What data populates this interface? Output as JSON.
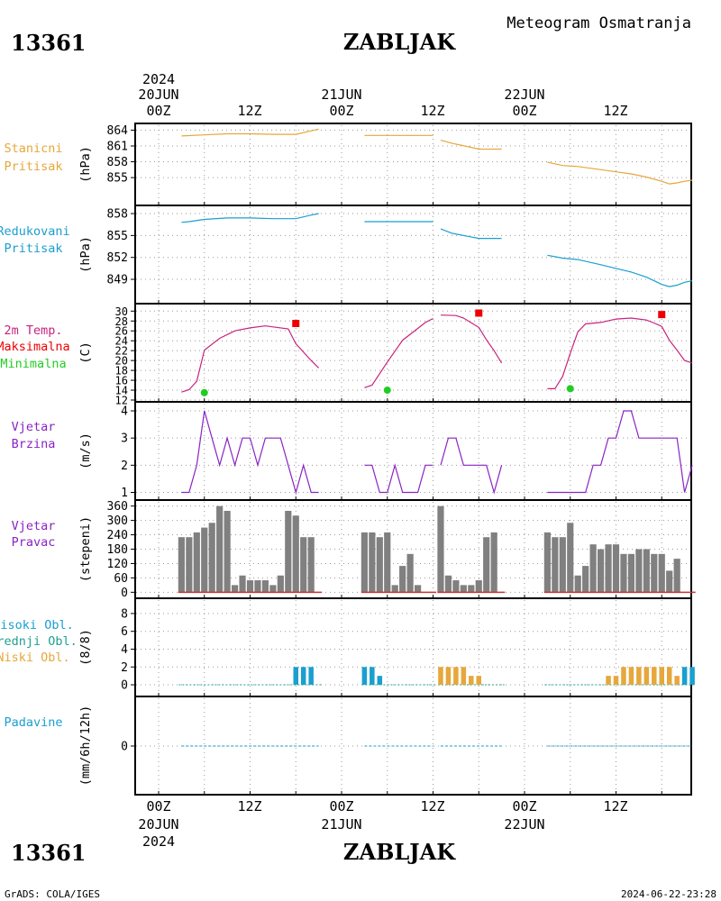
{
  "header": {
    "station_id": "13361",
    "station_name": "ZABLJAK",
    "subtitle": "Meteogram Osmatranja"
  },
  "footer": {
    "station_id": "13361",
    "station_name": "ZABLJAK",
    "left": "GrADS: COLA/IGES",
    "right": "2024-06-22-23:28"
  },
  "time_axis": {
    "top_year": "2024",
    "date_labels": [
      "20JUN",
      "21JUN",
      "22JUN"
    ],
    "hour_labels": [
      "00Z",
      "12Z",
      "00Z",
      "12Z",
      "00Z",
      "12Z"
    ],
    "bottom_year": "2024"
  },
  "colors": {
    "station_pressure": "#e6a73c",
    "reduced_pressure": "#1a9fcf",
    "temperature": "#c8237f",
    "tmax": "#ee0000",
    "tmin": "#22cc22",
    "wind": "#8a24c4",
    "wind_dir_bar": "#808080",
    "wind_dir_base": "#cc3333",
    "cloud_high": "#1a9fcf",
    "cloud_mid": "#20a090",
    "cloud_low": "#e6a73c",
    "precip": "#1a9fcf",
    "grid": "#9a9a9a"
  },
  "chart_data": [
    {
      "type": "line",
      "panel": "station_pressure",
      "label_lines": [
        "Stanicni",
        "Pritisak"
      ],
      "ylabel": "(hPa)",
      "yticks": [
        "864",
        "861",
        "858",
        "855"
      ],
      "ylim": [
        852.8,
        864.5
      ],
      "x_unit": "hours since 2024-06-20 00Z",
      "series": [
        {
          "x": [
            3,
            6,
            9,
            12,
            15,
            18,
            21
          ],
          "y": [
            862.9,
            863.1,
            863.3,
            863.3,
            863.2,
            863.2,
            864.2
          ]
        },
        {
          "x": [
            27,
            30,
            33,
            36
          ],
          "y": [
            863.0,
            863.0,
            863.0,
            863.0
          ]
        },
        {
          "x": [
            37,
            38.5,
            40.5,
            42,
            45
          ],
          "y": [
            862.1,
            861.5,
            860.9,
            860.4,
            860.4
          ]
        },
        {
          "x": [
            51,
            53,
            55,
            58,
            60,
            62,
            64,
            66,
            67,
            68,
            69,
            70
          ],
          "y": [
            857.9,
            857.3,
            857.1,
            856.5,
            856.1,
            855.7,
            855.1,
            854.3,
            853.8,
            854.0,
            854.3,
            854.5
          ]
        }
      ]
    },
    {
      "type": "line",
      "panel": "reduced_pressure",
      "label_lines": [
        "Redukovani",
        "Pritisak"
      ],
      "ylabel": "(hPa)",
      "yticks": [
        "858",
        "855",
        "852",
        "849"
      ],
      "ylim": [
        847.4,
        858.5
      ],
      "x_unit": "hours since 2024-06-20 00Z",
      "series": [
        {
          "x": [
            3,
            4,
            6,
            9,
            12,
            15,
            18,
            20,
            21
          ],
          "y": [
            856.8,
            856.9,
            857.2,
            857.4,
            857.4,
            857.3,
            857.3,
            857.8,
            858.0
          ]
        },
        {
          "x": [
            27,
            30,
            33,
            36
          ],
          "y": [
            856.9,
            856.9,
            856.9,
            856.9
          ]
        },
        {
          "x": [
            37,
            38.5,
            40.5,
            42,
            45
          ],
          "y": [
            855.9,
            855.3,
            854.9,
            854.6,
            854.6
          ]
        },
        {
          "x": [
            51,
            53,
            55,
            58,
            60,
            62,
            64,
            66,
            67,
            68,
            69,
            70
          ],
          "y": [
            852.3,
            851.9,
            851.7,
            851.0,
            850.5,
            850.0,
            849.3,
            848.3,
            848.0,
            848.2,
            848.6,
            848.8
          ]
        }
      ]
    },
    {
      "type": "line",
      "panel": "temperature",
      "label_lines": [
        "2m Temp.",
        "Maksimalna",
        "Minimalna"
      ],
      "ylabel": "(C)",
      "yticks": [
        "30",
        "28",
        "26",
        "24",
        "22",
        "20",
        "18",
        "16",
        "14",
        "12"
      ],
      "ylim": [
        12,
        30.6
      ],
      "x_unit": "hours since 2024-06-20 00Z",
      "series": [
        {
          "name": "2m Temp.",
          "x": [
            3,
            4,
            5,
            6,
            8,
            10,
            12,
            14,
            17,
            18,
            20,
            21
          ],
          "y": [
            13.6,
            14.1,
            15.8,
            22.1,
            24.5,
            26.0,
            26.6,
            27.0,
            26.4,
            23.4,
            20.0,
            18.5
          ]
        },
        {
          "name": "2m Temp.",
          "x": [
            27,
            28,
            30,
            32,
            34,
            35,
            36
          ],
          "y": [
            14.5,
            15.0,
            19.7,
            24.1,
            26.5,
            27.7,
            28.5
          ]
        },
        {
          "name": "2m Temp.",
          "x": [
            37,
            39,
            40,
            42,
            43,
            44,
            45
          ],
          "y": [
            29.2,
            29.1,
            28.6,
            26.7,
            24.2,
            22.0,
            19.5
          ]
        },
        {
          "name": "2m Temp.",
          "x": [
            51,
            52,
            53,
            54,
            55,
            56,
            58,
            60,
            62,
            63,
            64,
            65,
            66,
            67,
            68,
            69,
            70
          ],
          "y": [
            14.3,
            14.3,
            16.8,
            21.5,
            25.8,
            27.4,
            27.7,
            28.4,
            28.6,
            28.4,
            28.2,
            27.6,
            26.9,
            24.1,
            22.1,
            20.0,
            19.5
          ]
        }
      ],
      "max_points": [
        {
          "x": 18,
          "y": 27.5
        },
        {
          "x": 42,
          "y": 29.6
        },
        {
          "x": 66,
          "y": 29.3
        }
      ],
      "min_points": [
        {
          "x": 6,
          "y": 13.5
        },
        {
          "x": 30,
          "y": 14.0
        },
        {
          "x": 54,
          "y": 14.3
        }
      ]
    },
    {
      "type": "line",
      "panel": "wind_speed",
      "label_lines": [
        "Vjetar",
        "Brzina"
      ],
      "ylabel": "(m/s)",
      "yticks": [
        "4",
        "3",
        "2",
        "1"
      ],
      "ylim": [
        0.95,
        4.1
      ],
      "x_unit": "hours since 2024-06-20 00Z",
      "series": [
        {
          "x": [
            3,
            4,
            5,
            6,
            7,
            8,
            9,
            10,
            11,
            12,
            13,
            14,
            15,
            16,
            17,
            18,
            19,
            20,
            21
          ],
          "y": [
            1,
            1,
            2,
            4,
            3,
            2,
            3,
            2,
            3,
            3,
            2,
            3,
            3,
            3,
            2,
            1,
            2,
            1,
            1
          ]
        },
        {
          "x": [
            27,
            28,
            29,
            30,
            31,
            32,
            33,
            34,
            35,
            36
          ],
          "y": [
            2,
            2,
            1,
            1,
            2,
            1,
            1,
            1,
            2,
            2
          ]
        },
        {
          "x": [
            37,
            38,
            39,
            40,
            41,
            42,
            43,
            44,
            45
          ],
          "y": [
            2,
            3,
            3,
            2,
            2,
            2,
            2,
            1,
            2
          ]
        },
        {
          "x": [
            51,
            52,
            53,
            54,
            55,
            56,
            57,
            58,
            59,
            60,
            61,
            62,
            63,
            64,
            65,
            66,
            67,
            68,
            69,
            70
          ],
          "y": [
            1,
            1,
            1,
            1,
            1,
            1,
            2,
            2,
            3,
            3,
            4,
            4,
            3,
            3,
            3,
            3,
            3,
            3,
            1,
            2
          ]
        }
      ]
    },
    {
      "type": "bar",
      "panel": "wind_direction",
      "label_lines": [
        "Vjetar",
        "Pravac"
      ],
      "ylabel": "(stepeni)",
      "yticks": [
        "360",
        "300",
        "240",
        "180",
        "120",
        "60",
        "0"
      ],
      "ylim": [
        -10,
        370
      ],
      "x_unit": "hours since 2024-06-20 00Z",
      "x": [
        3,
        4,
        5,
        6,
        7,
        8,
        9,
        10,
        11,
        12,
        13,
        14,
        15,
        16,
        17,
        18,
        19,
        20,
        21,
        27,
        28,
        29,
        30,
        31,
        32,
        33,
        34,
        35,
        36,
        37,
        38,
        39,
        40,
        41,
        42,
        43,
        44,
        45,
        51,
        52,
        53,
        54,
        55,
        56,
        57,
        58,
        59,
        60,
        61,
        62,
        63,
        64,
        65,
        66,
        67,
        68,
        69,
        70
      ],
      "values": [
        230,
        230,
        250,
        270,
        290,
        360,
        340,
        30,
        70,
        50,
        50,
        50,
        30,
        70,
        340,
        320,
        230,
        230,
        0,
        250,
        250,
        230,
        250,
        30,
        110,
        160,
        30,
        0,
        0,
        360,
        70,
        50,
        30,
        30,
        50,
        230,
        250,
        0,
        250,
        230,
        230,
        290,
        70,
        110,
        200,
        180,
        200,
        200,
        160,
        160,
        180,
        180,
        160,
        160,
        90,
        140,
        0,
        0
      ]
    },
    {
      "type": "bar",
      "panel": "clouds",
      "label_lines": [
        "Visoki Obl.",
        "Srednji Obl.",
        "Niski Obl."
      ],
      "ylabel": "(8/8)",
      "yticks": [
        "8",
        "6",
        "4",
        "2",
        "0"
      ],
      "ylim": [
        -0.3,
        8.6
      ],
      "x_unit": "hours since 2024-06-20 00Z",
      "series": [
        {
          "name": "Visoki Obl.",
          "x": [
            18,
            19,
            20,
            27,
            28,
            29
          ],
          "values": [
            2,
            2,
            2,
            2,
            2,
            1
          ]
        },
        {
          "name": "Niski Obl.",
          "x": [
            37,
            38,
            39,
            40,
            41,
            42,
            59,
            60,
            61,
            62,
            63,
            64,
            65,
            66,
            67,
            68
          ],
          "values": [
            2,
            2,
            2,
            2,
            1,
            1,
            1,
            1,
            2,
            2,
            2,
            2,
            2,
            2,
            2,
            1
          ]
        },
        {
          "name": "Visoki Obl.",
          "x": [
            69,
            70
          ],
          "values": [
            2,
            2
          ]
        }
      ]
    },
    {
      "type": "line",
      "panel": "precipitation",
      "label_lines": [
        "Padavine"
      ],
      "ylabel": "(mm/6h/12h)",
      "yticks": [
        "0"
      ],
      "x_unit": "hours since 2024-06-20 00Z",
      "series": [
        {
          "x": [
            3,
            21
          ],
          "y": [
            0,
            0
          ]
        },
        {
          "x": [
            27,
            36
          ],
          "y": [
            0,
            0
          ]
        },
        {
          "x": [
            37,
            45
          ],
          "y": [
            0,
            0
          ]
        },
        {
          "x": [
            51,
            70
          ],
          "y": [
            0,
            0
          ]
        }
      ]
    }
  ]
}
